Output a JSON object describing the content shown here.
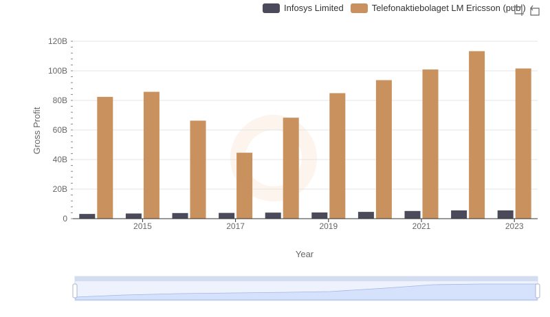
{
  "legend": [
    {
      "name": "Infosys Limited",
      "color": "#4a4a5a"
    },
    {
      "name": "Telefonaktiebolaget LM Ericsson (publ)",
      "color": "#c9915e"
    }
  ],
  "toolbox": {
    "icons": [
      "zoom-icon",
      "restore-icon"
    ]
  },
  "chart_data": {
    "type": "bar",
    "title": "",
    "xlabel": "Year",
    "ylabel": "Gross Profit",
    "ylim": [
      0,
      120
    ],
    "y_tick_labels": [
      "0",
      "20B",
      "40B",
      "60B",
      "80B",
      "100B",
      "120B"
    ],
    "x_tick_labels": [
      "2015",
      "2017",
      "2019",
      "2021",
      "2023"
    ],
    "categories": [
      "2014",
      "2015",
      "2016",
      "2017",
      "2018",
      "2019",
      "2020",
      "2021",
      "2022",
      "2023"
    ],
    "series": [
      {
        "name": "Infosys Limited",
        "color": "#4a4a5a",
        "values": [
          3.2,
          3.5,
          3.8,
          3.9,
          4.1,
          4.2,
          4.6,
          5.2,
          5.6,
          5.6
        ]
      },
      {
        "name": "Telefonaktiebolaget LM Ericsson (publ)",
        "color": "#c9915e",
        "values": [
          82.4,
          85.8,
          66.3,
          44.6,
          68.3,
          84.9,
          93.7,
          100.9,
          113.3,
          101.6
        ]
      }
    ],
    "grid": true,
    "legend_position": "top-right"
  }
}
